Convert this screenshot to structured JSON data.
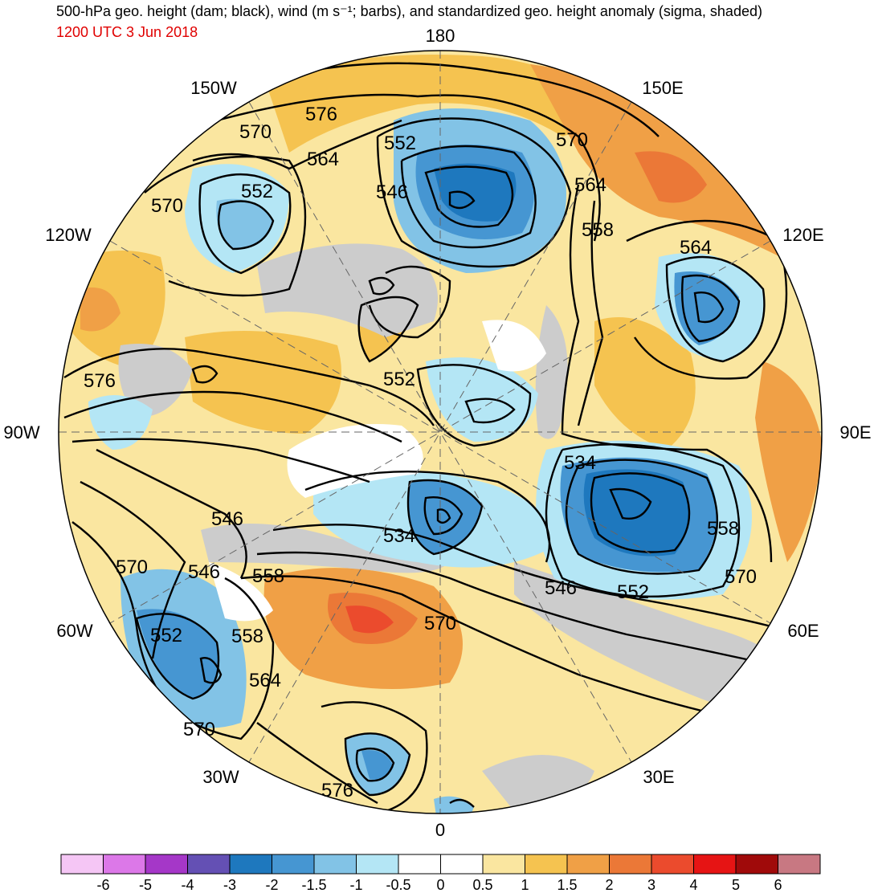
{
  "header": {
    "title": "500-hPa geo. height (dam; black), wind (m s⁻¹; barbs), and standardized geo. height anomaly (sigma, shaded)",
    "valid_time": "1200 UTC 3 Jun 2018"
  },
  "colors": {
    "title": "#000000",
    "valid_time": "#e00000",
    "land_mask": "#cccccc",
    "contour": "#000000"
  },
  "map": {
    "projection": "north polar stereographic",
    "longitude_labels": {
      "lon_180": "180",
      "lon_150e": "150E",
      "lon_120e": "120E",
      "lon_90e": "90E",
      "lon_60e": "60E",
      "lon_30e": "30E",
      "lon_0": "0",
      "lon_30w": "30W",
      "lon_60w": "60W",
      "lon_90w": "90W",
      "lon_120w": "120W",
      "lon_150w": "150W"
    },
    "contour_labels": {
      "c1": "576",
      "c2": "570",
      "c3": "564",
      "c4": "552",
      "c5": "552",
      "c6": "570",
      "c7": "546",
      "c8": "570",
      "c9": "564",
      "c10": "558",
      "c11": "564",
      "c12": "576",
      "c13": "552",
      "c14": "534",
      "c15": "534",
      "c16": "546",
      "c17": "546",
      "c18": "558",
      "c19": "570",
      "c20": "570",
      "c21": "546",
      "c22": "552",
      "c23": "558",
      "c24": "570",
      "c25": "552",
      "c26": "558",
      "c27": "564",
      "c28": "570",
      "c29": "576"
    }
  },
  "colorbar": {
    "labels": [
      "-6",
      "-5",
      "-4",
      "-3",
      "-2",
      "-1.5",
      "-1",
      "-0.5",
      "0",
      "0.5",
      "1",
      "1.5",
      "2",
      "3",
      "4",
      "5",
      "6"
    ],
    "colors": [
      "#f5c6f5",
      "#dc78e8",
      "#a537c8",
      "#6450b4",
      "#1e78be",
      "#4696d2",
      "#82c3e6",
      "#b4e6f5",
      "#ffffff",
      "#ffffff",
      "#fae6a0",
      "#f5c350",
      "#f0a046",
      "#eb7837",
      "#eb4b2d",
      "#e61414",
      "#a00a0a",
      "#c87882"
    ]
  }
}
